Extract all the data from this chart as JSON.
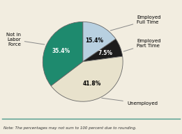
{
  "slices": [
    {
      "label": "Employed\nFull Time",
      "value": 15.4,
      "color": "#b8d0e0",
      "pct_color": "#000000"
    },
    {
      "label": "Employed\nPart Time",
      "value": 7.5,
      "color": "#1c1c1c",
      "pct_color": "#ffffff"
    },
    {
      "label": "Unemployed",
      "value": 41.8,
      "color": "#e8e2cc",
      "pct_color": "#000000"
    },
    {
      "label": "Not in\nLabor\nForce",
      "value": 35.4,
      "color": "#1e8a6e",
      "pct_color": "#ffffff"
    }
  ],
  "note": "Note: The percentages may not sum to 100 percent due to rounding.",
  "background_color": "#f2ede0",
  "line_color": "#4a9a8a",
  "startangle": 90
}
